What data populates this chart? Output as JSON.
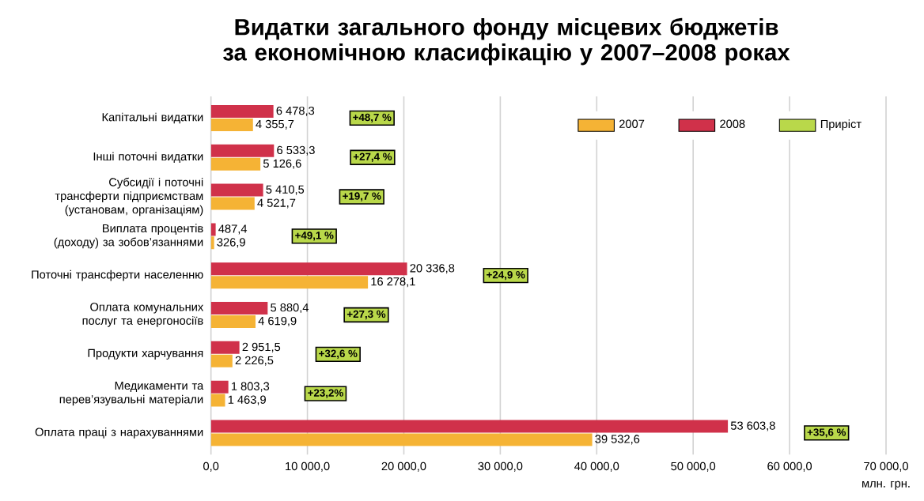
{
  "chart_data": {
    "type": "bar",
    "orientation": "horizontal",
    "title": "Видатки загального фонду місцевих бюджетів за економічною класифікацію у 2007–2008 роках",
    "xlabel": "млн. грн.",
    "categories": [
      "Капітальні видатки",
      "Інші поточні видатки",
      "Субсидії і поточні трансферти підприємствам (установам, організаціям)",
      "Виплата процентів (доходу) за зобов’язаннями",
      "Поточні трансферти населенню",
      "Оплата комунальних послуг та енергоносіїв",
      "Продукти харчування",
      "Медикаменти та перев’язувальні матеріали",
      "Оплата праці з нарахуваннями"
    ],
    "series": [
      {
        "name": "2007",
        "color": "#f5b335",
        "values": [
          4355.7,
          5126.6,
          4521.7,
          326.9,
          16278.1,
          4619.9,
          2226.5,
          1463.9,
          39532.6
        ],
        "value_labels": [
          "4 355,7",
          "5 126,6",
          "4 521,7",
          "326,9",
          "16 278,1",
          "4 619,9",
          "2 226,5",
          "1 463,9",
          "39 532,6"
        ]
      },
      {
        "name": "2008",
        "color": "#d0314a",
        "values": [
          6478.3,
          6533.3,
          5410.5,
          487.4,
          20336.8,
          5880.4,
          2951.5,
          1803.3,
          53603.8
        ],
        "value_labels": [
          "6 478,3",
          "6 533,3",
          "5 410,5",
          "487,4",
          "20 336,8",
          "5 880,4",
          "2 951,5",
          "1 803,3",
          "53 603,8"
        ]
      },
      {
        "name": "Приріст",
        "color": "#b9d84a",
        "values": [
          null,
          null,
          null,
          null,
          null,
          null,
          null,
          null,
          null
        ],
        "value_labels": [
          "+48,7 %",
          "+27,4 %",
          "+19,7 %",
          "+49,1 %",
          "+24,9 %",
          "+27,3 %",
          "+32,6 %",
          "+23,2%",
          "+35,6 %"
        ]
      }
    ],
    "xlim": [
      0,
      70000
    ],
    "xticks": [
      {
        "value": 0,
        "label": "0,0"
      },
      {
        "value": 10000,
        "label": "10 000,0"
      },
      {
        "value": 20000,
        "label": "20 000,0"
      },
      {
        "value": 30000,
        "label": "30 000,0"
      },
      {
        "value": 40000,
        "label": "40 000,0"
      },
      {
        "value": 50000,
        "label": "50 000,0"
      },
      {
        "value": 60000,
        "label": "60 000,0"
      },
      {
        "value": 70000,
        "label": "70 000,0"
      }
    ],
    "grid": "x",
    "legend": "top right"
  }
}
